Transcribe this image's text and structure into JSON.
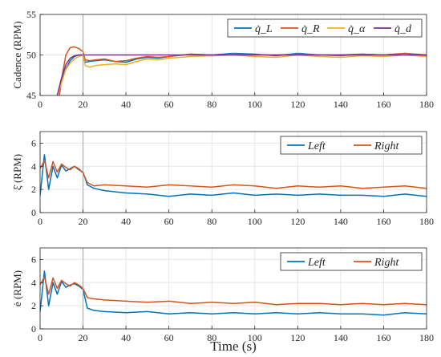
{
  "x_axis_label": "Time (s)",
  "colors": {
    "blue": "#0072BD",
    "orange": "#D95319",
    "yellow": "#EDB120",
    "purple": "#7E2F8E",
    "marker": "#4DBEEE",
    "axis": "#262626",
    "grid": "#e6e6e6"
  },
  "chart_data": [
    {
      "type": "line",
      "ylabel": "Cadence (RPM)",
      "xlim": [
        0,
        180
      ],
      "ylim": [
        45,
        55
      ],
      "x_ticks": [
        0,
        20,
        40,
        60,
        80,
        100,
        120,
        140,
        160,
        180
      ],
      "y_ticks": [
        45,
        50,
        55
      ],
      "grid": true,
      "legend": "top-right",
      "legend_labels": [
        "q̇_L",
        "q̇_R",
        "q̇_α",
        "q̇_d"
      ],
      "marker_x": 20,
      "series": [
        {
          "name": "q̇_L",
          "color": "blue",
          "x": [
            8,
            10,
            12,
            14,
            16,
            18,
            20,
            21,
            23,
            26,
            30,
            35,
            40,
            45,
            50,
            55,
            60,
            70,
            80,
            90,
            100,
            110,
            120,
            130,
            140,
            150,
            160,
            170,
            180
          ],
          "y": [
            45,
            46.8,
            48.3,
            49.3,
            49.8,
            50,
            50,
            49.1,
            49.2,
            49.3,
            49.4,
            49.2,
            49.1,
            49.5,
            49.7,
            49.6,
            49.8,
            50.1,
            50,
            50.2,
            50.1,
            49.9,
            50.2,
            50,
            50,
            50.1,
            50,
            50.2,
            50
          ]
        },
        {
          "name": "q̇_R",
          "color": "orange",
          "x": [
            9,
            10,
            12,
            14,
            16,
            18,
            20,
            21,
            23,
            26,
            30,
            35,
            40,
            45,
            50,
            55,
            60,
            70,
            80,
            90,
            100,
            110,
            120,
            130,
            140,
            150,
            160,
            170,
            180
          ],
          "y": [
            45,
            47,
            50,
            50.9,
            51,
            50.8,
            50.4,
            49.4,
            49.3,
            49.4,
            49.5,
            49.2,
            49.3,
            49.6,
            49.8,
            49.7,
            49.8,
            50.1,
            49.9,
            50.1,
            50,
            50,
            50.1,
            50,
            49.9,
            50.1,
            50,
            50.2,
            49.9
          ]
        },
        {
          "name": "q̇_α",
          "color": "yellow",
          "x": [
            8,
            10,
            12,
            14,
            16,
            18,
            20,
            21,
            23,
            26,
            30,
            35,
            40,
            45,
            50,
            55,
            60,
            70,
            80,
            90,
            100,
            110,
            120,
            130,
            140,
            150,
            160,
            170,
            180
          ],
          "y": [
            45,
            46.6,
            48.2,
            49,
            49.5,
            49.8,
            50,
            48.7,
            48.5,
            48.7,
            48.8,
            48.9,
            48.8,
            49.2,
            49.5,
            49.4,
            49.6,
            49.8,
            49.9,
            50,
            49.8,
            49.7,
            50,
            49.8,
            49.7,
            49.9,
            49.8,
            50,
            49.8
          ]
        },
        {
          "name": "q̇_d",
          "color": "purple",
          "x": [
            8,
            10,
            12,
            14,
            16,
            18,
            20,
            180
          ],
          "y": [
            45,
            47.2,
            48.8,
            49.6,
            49.9,
            50,
            50,
            50
          ]
        }
      ]
    },
    {
      "type": "line",
      "ylabel": "ξ̇ (RPM)",
      "xlim": [
        0,
        180
      ],
      "ylim": [
        0,
        7
      ],
      "x_ticks": [
        0,
        20,
        40,
        60,
        80,
        100,
        120,
        140,
        160,
        180
      ],
      "y_ticks": [
        0,
        2,
        4,
        6
      ],
      "grid": true,
      "legend": "top-right",
      "legend_labels": [
        "Left",
        "Right"
      ],
      "marker_x": 20,
      "series": [
        {
          "name": "Left",
          "color": "blue",
          "x": [
            0,
            2,
            4,
            6,
            8,
            10,
            12,
            14,
            16,
            18,
            20,
            22,
            25,
            30,
            40,
            50,
            60,
            70,
            80,
            90,
            100,
            110,
            120,
            130,
            140,
            150,
            160,
            170,
            180
          ],
          "y": [
            1.5,
            5,
            2,
            4,
            3,
            4.1,
            3.6,
            3.8,
            4,
            3.7,
            3.5,
            2.4,
            2.1,
            1.9,
            1.7,
            1.6,
            1.4,
            1.6,
            1.5,
            1.7,
            1.5,
            1.6,
            1.5,
            1.6,
            1.5,
            1.5,
            1.4,
            1.6,
            1.4
          ]
        },
        {
          "name": "Right",
          "color": "orange",
          "x": [
            0,
            2,
            4,
            6,
            8,
            10,
            12,
            14,
            16,
            18,
            20,
            22,
            25,
            30,
            40,
            50,
            60,
            70,
            80,
            90,
            100,
            110,
            120,
            130,
            140,
            150,
            160,
            170,
            180
          ],
          "y": [
            3.8,
            4.5,
            3,
            4.4,
            3.5,
            4.2,
            3.9,
            3.7,
            4,
            3.8,
            3.4,
            2.6,
            2.3,
            2.4,
            2.3,
            2.2,
            2.4,
            2.3,
            2.2,
            2.4,
            2.3,
            2.1,
            2.3,
            2.2,
            2.3,
            2.1,
            2.2,
            2.3,
            2.1
          ]
        }
      ]
    },
    {
      "type": "line",
      "ylabel": "ė (RPM)",
      "xlim": [
        0,
        180
      ],
      "ylim": [
        0,
        7
      ],
      "x_ticks": [
        0,
        20,
        40,
        60,
        80,
        100,
        120,
        140,
        160,
        180
      ],
      "y_ticks": [
        0,
        2,
        4,
        6
      ],
      "grid": true,
      "legend": "top-right",
      "legend_labels": [
        "Left",
        "Right"
      ],
      "marker_x": 20,
      "series": [
        {
          "name": "Left",
          "color": "blue",
          "x": [
            0,
            2,
            4,
            6,
            8,
            10,
            12,
            14,
            16,
            18,
            20,
            22,
            25,
            30,
            40,
            50,
            60,
            70,
            80,
            90,
            100,
            110,
            120,
            130,
            140,
            150,
            160,
            170,
            180
          ],
          "y": [
            1.5,
            5,
            2,
            4,
            3,
            4.1,
            3.6,
            3.8,
            3.9,
            3.7,
            3.4,
            1.8,
            1.6,
            1.5,
            1.4,
            1.5,
            1.3,
            1.4,
            1.3,
            1.4,
            1.3,
            1.4,
            1.3,
            1.4,
            1.3,
            1.3,
            1.2,
            1.4,
            1.3
          ]
        },
        {
          "name": "Right",
          "color": "orange",
          "x": [
            0,
            2,
            4,
            6,
            8,
            10,
            12,
            14,
            16,
            18,
            20,
            22,
            25,
            30,
            40,
            50,
            60,
            70,
            80,
            90,
            100,
            110,
            120,
            130,
            140,
            150,
            160,
            170,
            180
          ],
          "y": [
            3.8,
            4.5,
            3,
            4.4,
            3.5,
            4.2,
            3.9,
            3.7,
            4,
            3.8,
            3.5,
            2.7,
            2.6,
            2.5,
            2.4,
            2.3,
            2.4,
            2.2,
            2.3,
            2.2,
            2.3,
            2.1,
            2.2,
            2.2,
            2.1,
            2.2,
            2.1,
            2.2,
            2.1
          ]
        }
      ]
    }
  ]
}
